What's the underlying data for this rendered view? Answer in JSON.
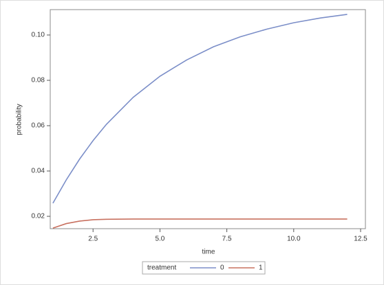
{
  "chart_data": {
    "type": "line",
    "x_label": "time",
    "y_label": "probability",
    "x": [
      1,
      1.5,
      2,
      2.5,
      3,
      4,
      5,
      6,
      7,
      8,
      9,
      10,
      11,
      12
    ],
    "series": [
      {
        "name": "0",
        "color": "#7b8ec8",
        "values": [
          0.0258,
          0.0361,
          0.0453,
          0.0534,
          0.0606,
          0.0725,
          0.0818,
          0.089,
          0.0948,
          0.0992,
          0.1026,
          0.1054,
          0.1075,
          0.1091
        ]
      },
      {
        "name": "1",
        "color": "#c8705f",
        "values": [
          0.0148,
          0.0168,
          0.0179,
          0.0185,
          0.0187,
          0.0188,
          0.0188,
          0.0188,
          0.0188,
          0.0188,
          0.0188,
          0.0188,
          0.0188,
          0.0188
        ]
      }
    ],
    "legend_title": "treatment",
    "xlim": [
      0.9,
      12.68
    ],
    "ylim": [
      0.01455,
      0.1112
    ],
    "xticks": [
      2.5,
      {
        "value": 5,
        "label": "5.0"
      },
      7.5,
      {
        "value": 10,
        "label": "10.0"
      },
      12.5
    ],
    "yticks": [
      0.02,
      0.04,
      0.06,
      0.08,
      {
        "value": 0.1,
        "label": "0.10"
      }
    ],
    "grid": false,
    "legend": "bottom"
  }
}
